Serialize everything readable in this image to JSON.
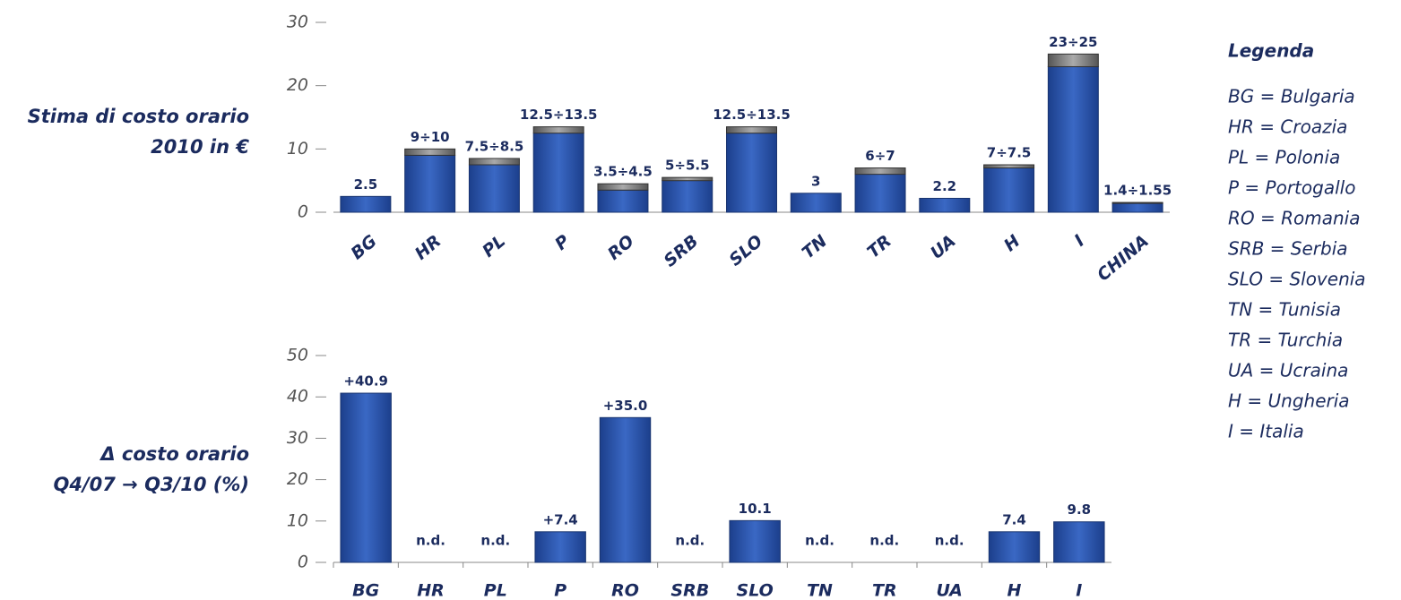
{
  "chart_data": [
    {
      "type": "range_bar",
      "ylabel": [
        "Stima di costo orario",
        "2010 in €"
      ],
      "categories": [
        "BG",
        "HR",
        "PL",
        "P",
        "RO",
        "SRB",
        "SLO",
        "TN",
        "TR",
        "UA",
        "H",
        "I",
        "CHINA"
      ],
      "values": [
        2.5,
        9,
        7.5,
        12.5,
        3.5,
        5,
        12.5,
        3,
        6,
        2.2,
        7,
        23,
        1.4
      ],
      "highs": [
        null,
        10,
        8.5,
        13.5,
        4.5,
        5.5,
        13.5,
        null,
        7,
        null,
        7.5,
        25,
        1.55
      ],
      "value_labels": [
        "2.5",
        "9÷10",
        "7.5÷8.5",
        "12.5÷13.5",
        "3.5÷4.5",
        "5÷5.5",
        "12.5÷13.5",
        "3",
        "6÷7",
        "2.2",
        "7÷7.5",
        "23÷25",
        "1.4÷1.55"
      ],
      "color": "#2450a8",
      "range_color": "#8a8a8a",
      "ylim": [
        0,
        30
      ],
      "yticks": [
        0,
        10,
        20,
        30
      ]
    },
    {
      "type": "bar",
      "ylabel": [
        "Δ costo orario",
        "Q4/07 → Q3/10 (%)"
      ],
      "categories": [
        "BG",
        "HR",
        "PL",
        "P",
        "RO",
        "SRB",
        "SLO",
        "TN",
        "TR",
        "UA",
        "H",
        "I"
      ],
      "values": [
        40.9,
        null,
        null,
        7.4,
        35.0,
        null,
        10.1,
        null,
        null,
        null,
        7.4,
        9.8
      ],
      "value_labels": [
        "+40.9",
        "n.d.",
        "n.d.",
        "+7.4",
        "+35.0",
        "n.d.",
        "10.1",
        "n.d.",
        "n.d.",
        "n.d.",
        "7.4",
        "9.8"
      ],
      "color": "#2450a8",
      "ylim": [
        0,
        50
      ],
      "yticks": [
        0,
        10,
        20,
        30,
        40,
        50
      ]
    }
  ],
  "legend": {
    "title": "Legenda",
    "items": [
      "BG = Bulgaria",
      "HR = Croazia",
      "PL = Polonia",
      "P = Portogallo",
      "RO = Romania",
      "SRB = Serbia",
      "SLO = Slovenia",
      "TN = Tunisia",
      "TR = Turchia",
      "UA = Ucraina",
      "H = Ungheria",
      "I = Italia"
    ]
  }
}
